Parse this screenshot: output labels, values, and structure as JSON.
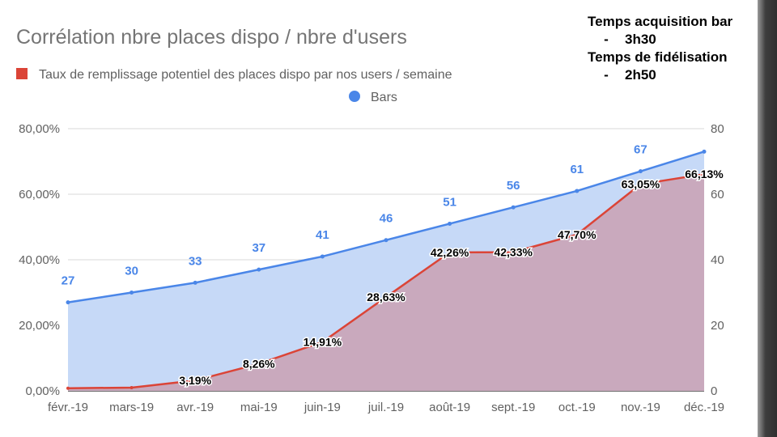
{
  "chart_data": {
    "type": "area",
    "title": "Corrélation nbre places dispo / nbre d'users",
    "categories": [
      "févr.-19",
      "mars-19",
      "avr.-19",
      "mai-19",
      "juin-19",
      "juil.-19",
      "août-19",
      "sept.-19",
      "oct.-19",
      "nov.-19",
      "déc.-19"
    ],
    "series": [
      {
        "name": "Taux de remplissage potentiel des places dispo par nos users  / semaine",
        "axis": "left",
        "color": "#db4437",
        "fill": "#c9a9bd",
        "values": [
          0.8,
          1.0,
          3.19,
          8.26,
          14.91,
          28.63,
          42.26,
          42.33,
          47.7,
          63.05,
          66.13
        ],
        "labels": [
          "",
          "",
          "3,19%",
          "8,26%",
          "14,91%",
          "28,63%",
          "42,26%",
          "42,33%",
          "47,70%",
          "63,05%",
          "66,13%"
        ]
      },
      {
        "name": "Bars",
        "axis": "right",
        "color": "#4a86e8",
        "fill": "#c6d9f7",
        "values": [
          27,
          30,
          33,
          37,
          41,
          46,
          51,
          56,
          61,
          67,
          73
        ],
        "labels": [
          "27",
          "30",
          "33",
          "37",
          "41",
          "46",
          "51",
          "56",
          "61",
          "67",
          ""
        ]
      }
    ],
    "y_left": {
      "ylim": [
        0,
        80
      ],
      "ticks": [
        "0,00%",
        "20,00%",
        "40,00%",
        "60,00%",
        "80,00%"
      ]
    },
    "y_right": {
      "ylim": [
        0,
        80
      ],
      "ticks": [
        "0",
        "20",
        "40",
        "60",
        "80"
      ]
    },
    "grid": true,
    "legend": "top-left"
  },
  "info": {
    "line1": "Temps acquisition bar",
    "dash1": "-",
    "value1": "3h30",
    "line2": "Temps de fidélisation",
    "dash2": "-",
    "value2": "2h50"
  }
}
